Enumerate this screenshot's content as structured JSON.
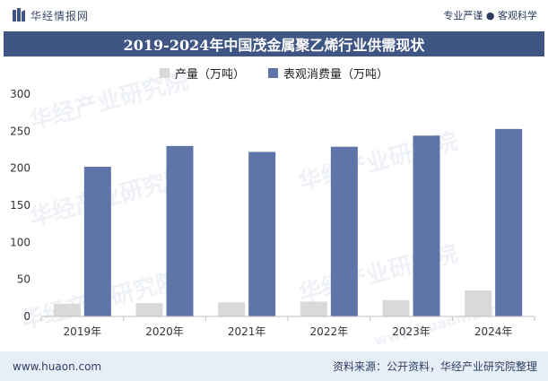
{
  "header": {
    "brand_name": "华经情报网",
    "slogan": "专业严谨 ● 客观科学"
  },
  "title": "2019-2024年中国茂金属聚乙烯行业供需现状",
  "legend": {
    "production": "产量（万吨）",
    "consumption": "表观消费量（万吨）"
  },
  "chart_data": {
    "type": "bar",
    "title": "2019-2024年中国茂金属聚乙烯行业供需现状",
    "categories": [
      "2019年",
      "2020年",
      "2021年",
      "2022年",
      "2023年",
      "2024年"
    ],
    "series": [
      {
        "name": "产量（万吨）",
        "color": "#d9d9d9",
        "values": [
          17,
          18,
          19,
          20,
          22,
          35
        ]
      },
      {
        "name": "表观消费量（万吨）",
        "color": "#5f74a8",
        "values": [
          202,
          230,
          222,
          229,
          244,
          253
        ]
      }
    ],
    "ylim": [
      0,
      300
    ],
    "yticks": [
      0,
      50,
      100,
      150,
      200,
      250,
      300
    ],
    "grid": false,
    "legend_position": "top"
  },
  "footer": {
    "url": "www.huaon.com",
    "source": "资料来源：公开资料，华经产业研究院整理"
  },
  "watermarks": [
    "华经产业研究院",
    "华经产业研究院",
    "华经产业研究院",
    "华经产业研究院",
    "华经产业研究院",
    "www.huaon.com"
  ]
}
